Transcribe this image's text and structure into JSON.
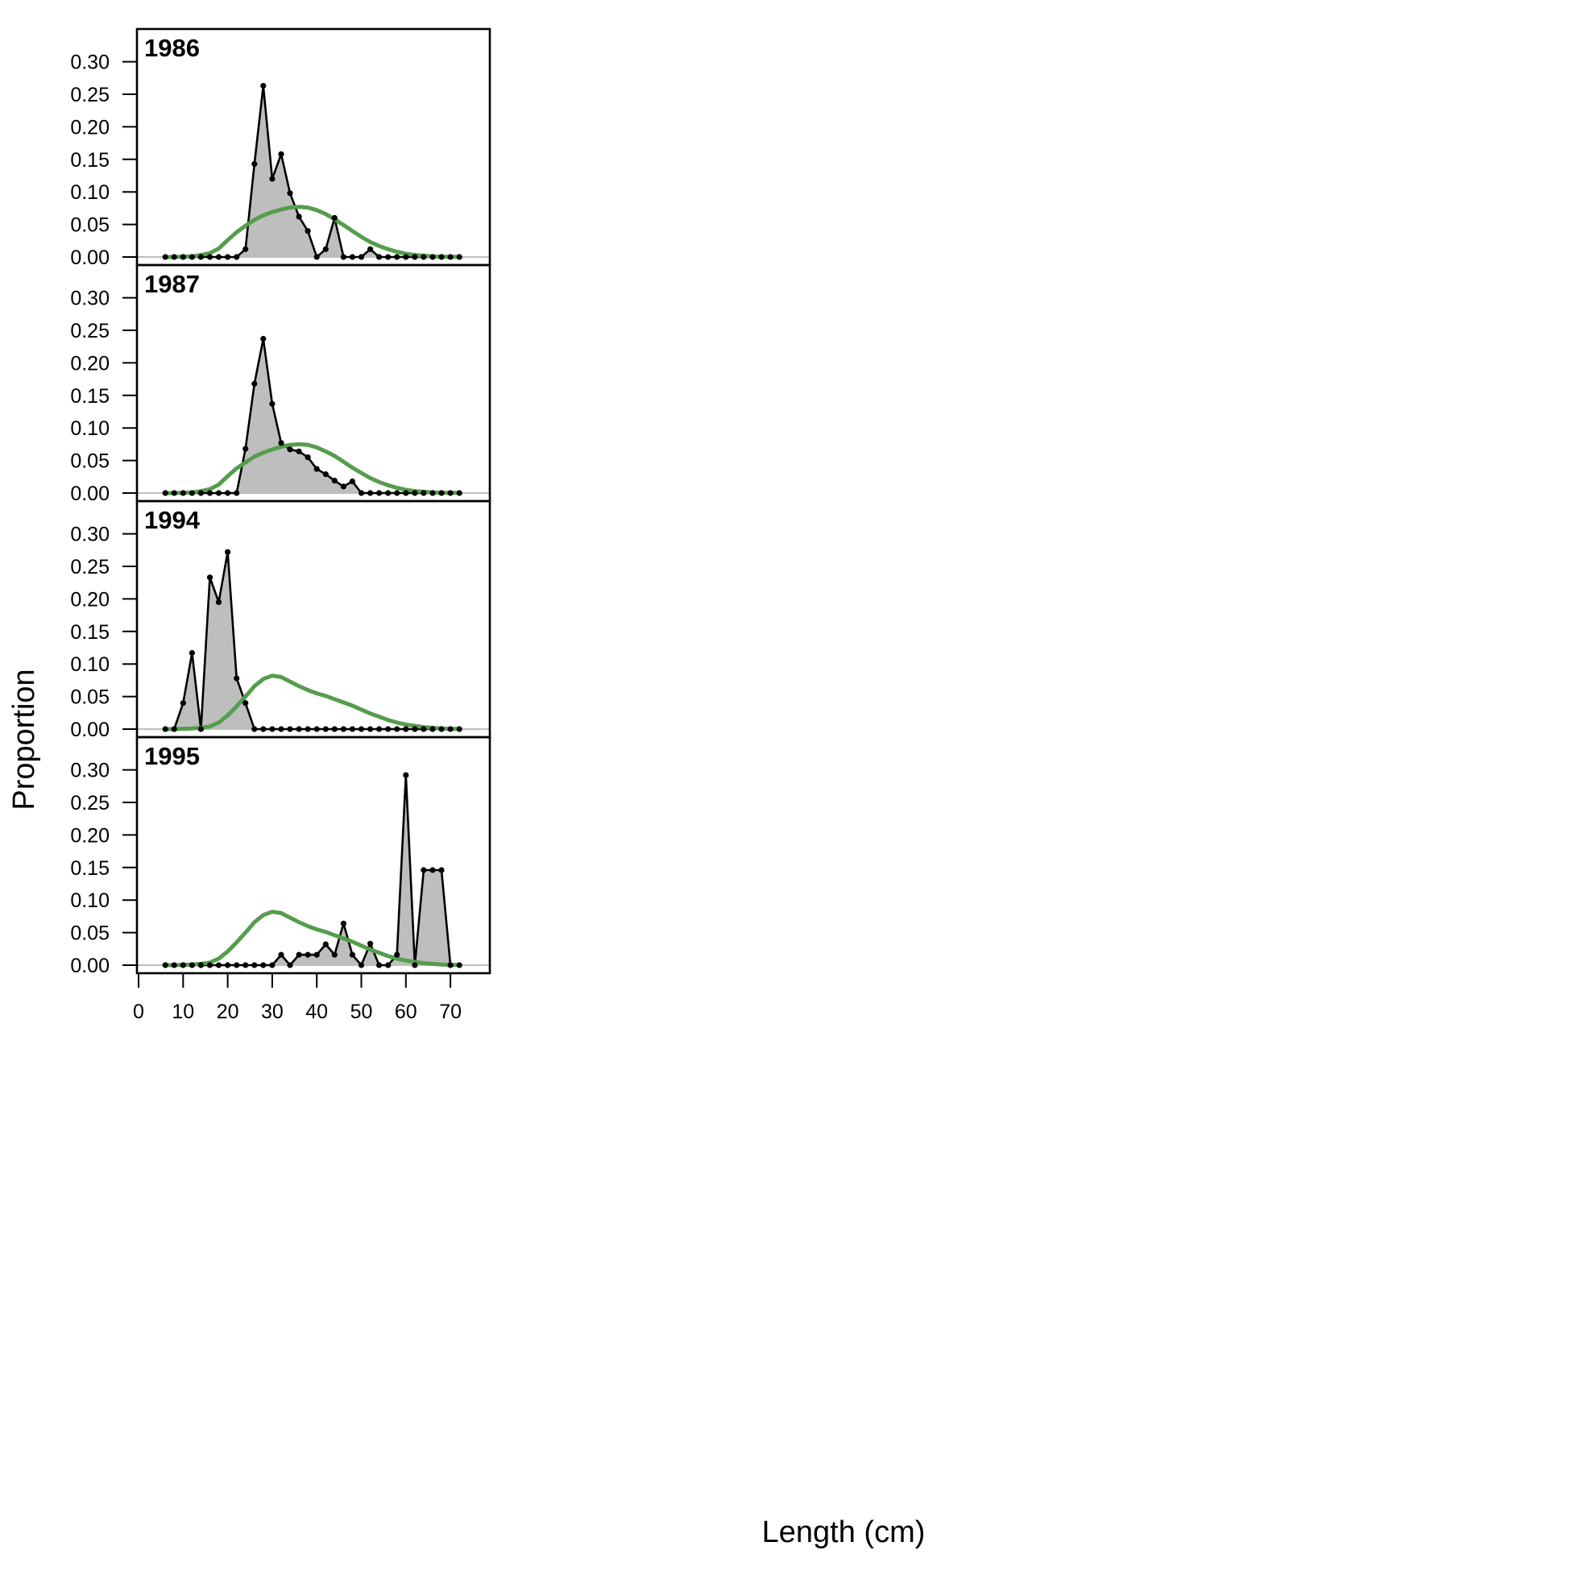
{
  "chart_data": {
    "type": "area",
    "xlabel": "Length (cm)",
    "ylabel": "Proportion",
    "xlim": [
      0,
      78
    ],
    "ylim": [
      0,
      0.33
    ],
    "x_ticks": [
      0,
      10,
      20,
      30,
      40,
      50,
      60,
      70
    ],
    "y_ticks": [
      0.0,
      0.05,
      0.1,
      0.15,
      0.2,
      0.25,
      0.3
    ],
    "y_tick_labels": [
      "0.00",
      "0.05",
      "0.10",
      "0.15",
      "0.20",
      "0.25",
      "0.30"
    ],
    "grid": false,
    "colors": {
      "observed_fill": "#bebebe",
      "observed_line": "#000000",
      "expected_line": "#559d4d",
      "zero_line": "#bebebe"
    },
    "x": [
      6,
      8,
      10,
      12,
      14,
      16,
      18,
      20,
      22,
      24,
      26,
      28,
      30,
      32,
      34,
      36,
      38,
      40,
      42,
      44,
      46,
      48,
      50,
      52,
      54,
      56,
      58,
      60,
      62,
      64,
      66,
      68,
      70,
      72
    ],
    "panels": [
      {
        "label": "1986",
        "observed": [
          0,
          0,
          0,
          0,
          0,
          0,
          0,
          0,
          0,
          0.012,
          0.143,
          0.263,
          0.12,
          0.158,
          0.098,
          0.062,
          0.04,
          0,
          0.012,
          0.06,
          0,
          0,
          0,
          0.012,
          0,
          0,
          0,
          0,
          0,
          0,
          0,
          0,
          0,
          0
        ],
        "expected": [
          0,
          0,
          0.0005,
          0.001,
          0.003,
          0.006,
          0.013,
          0.026,
          0.038,
          0.048,
          0.057,
          0.064,
          0.069,
          0.073,
          0.076,
          0.077,
          0.076,
          0.072,
          0.066,
          0.058,
          0.049,
          0.04,
          0.031,
          0.023,
          0.017,
          0.012,
          0.008,
          0.005,
          0.003,
          0.002,
          0.001,
          0.0005,
          0.0003,
          0.0002
        ]
      },
      {
        "label": "1987",
        "observed": [
          0,
          0,
          0,
          0,
          0,
          0,
          0,
          0,
          0,
          0.068,
          0.168,
          0.237,
          0.137,
          0.077,
          0.067,
          0.064,
          0.055,
          0.037,
          0.029,
          0.019,
          0.01,
          0.018,
          0,
          0,
          0,
          0,
          0,
          0,
          0,
          0,
          0,
          0,
          0,
          0
        ],
        "expected": [
          0,
          0,
          0.0005,
          0.001,
          0.003,
          0.006,
          0.013,
          0.026,
          0.038,
          0.047,
          0.056,
          0.062,
          0.067,
          0.071,
          0.074,
          0.075,
          0.074,
          0.07,
          0.064,
          0.057,
          0.048,
          0.039,
          0.031,
          0.023,
          0.017,
          0.012,
          0.008,
          0.005,
          0.003,
          0.002,
          0.001,
          0.0005,
          0.0003,
          0.0002
        ]
      },
      {
        "label": "1994",
        "observed": [
          0,
          0,
          0.04,
          0.117,
          0,
          0.233,
          0.195,
          0.272,
          0.078,
          0.04,
          0,
          0,
          0,
          0,
          0,
          0,
          0,
          0,
          0,
          0,
          0,
          0,
          0,
          0,
          0,
          0,
          0,
          0,
          0,
          0,
          0,
          0,
          0,
          0
        ],
        "expected": [
          0,
          0,
          0.0005,
          0.001,
          0.002,
          0.004,
          0.01,
          0.021,
          0.035,
          0.05,
          0.066,
          0.077,
          0.082,
          0.08,
          0.073,
          0.066,
          0.06,
          0.055,
          0.051,
          0.046,
          0.041,
          0.036,
          0.03,
          0.024,
          0.019,
          0.014,
          0.01,
          0.007,
          0.005,
          0.003,
          0.002,
          0.001,
          0.0005,
          0.0003
        ]
      },
      {
        "label": "1995",
        "observed": [
          0,
          0,
          0,
          0,
          0,
          0,
          0,
          0,
          0,
          0,
          0,
          0,
          0,
          0.016,
          0,
          0.016,
          0.016,
          0.016,
          0.032,
          0.016,
          0.064,
          0.016,
          0,
          0.033,
          0,
          0,
          0.016,
          0.292,
          0,
          0.146,
          0.146,
          0.146,
          0,
          0
        ],
        "expected": [
          0,
          0,
          0.0005,
          0.001,
          0.002,
          0.004,
          0.01,
          0.021,
          0.035,
          0.05,
          0.066,
          0.077,
          0.082,
          0.08,
          0.073,
          0.066,
          0.06,
          0.055,
          0.051,
          0.046,
          0.041,
          0.036,
          0.03,
          0.024,
          0.019,
          0.014,
          0.01,
          0.007,
          0.005,
          0.003,
          0.002,
          0.001,
          0.0005,
          0.0003
        ]
      }
    ]
  }
}
